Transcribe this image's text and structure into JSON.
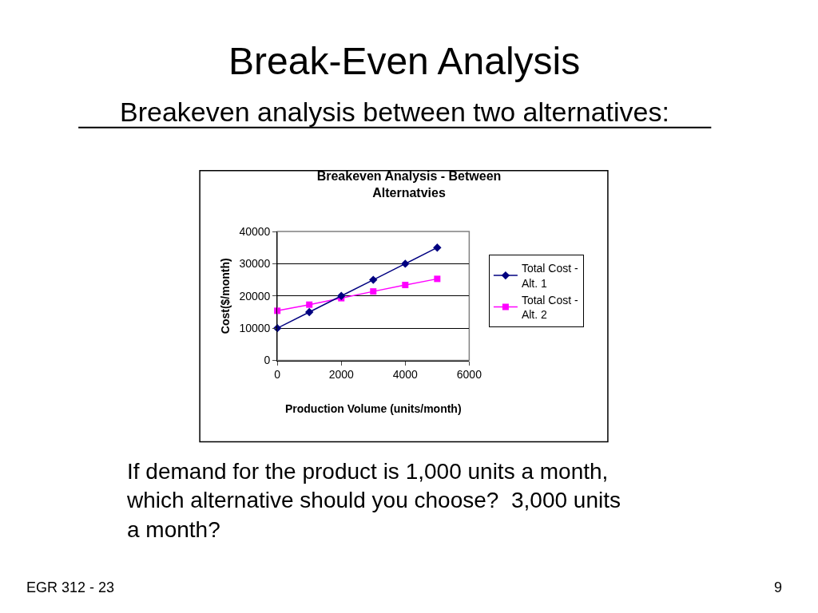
{
  "chart_data": {
    "type": "line",
    "title": "Breakeven Analysis - Between Alternatvies",
    "subtitle": "Breakeven analysis between two alternatives:",
    "xlabel": "Production Volume (units/month)",
    "ylabel": "Cost($/month)",
    "x": [
      0,
      1000,
      2000,
      3000,
      4000,
      5000
    ],
    "series": [
      {
        "name": "Total Cost - Alt. 1",
        "color": "#000080",
        "marker": "diamond",
        "values": [
          10000,
          15000,
          20000,
          25000,
          30000,
          35000
        ]
      },
      {
        "name": "Total Cost - Alt. 2",
        "color": "#ff00ff",
        "marker": "square",
        "values": [
          15400,
          17300,
          19300,
          21400,
          23400,
          25300
        ]
      }
    ],
    "xlim": [
      0,
      6000
    ],
    "xticks": [
      0,
      2000,
      4000,
      6000
    ],
    "ylim": [
      0,
      40000
    ],
    "yticks": [
      0,
      10000,
      20000,
      30000,
      40000
    ],
    "grid": "y",
    "legend": "right",
    "line_style": "solid",
    "annotations": [
      "Break-Even Analysis",
      "If demand for the product is 1,000 units a month,\nwhich alternative should you choose?  3,000 units\na month?",
      "EGR 312 - 23",
      "9"
    ]
  }
}
